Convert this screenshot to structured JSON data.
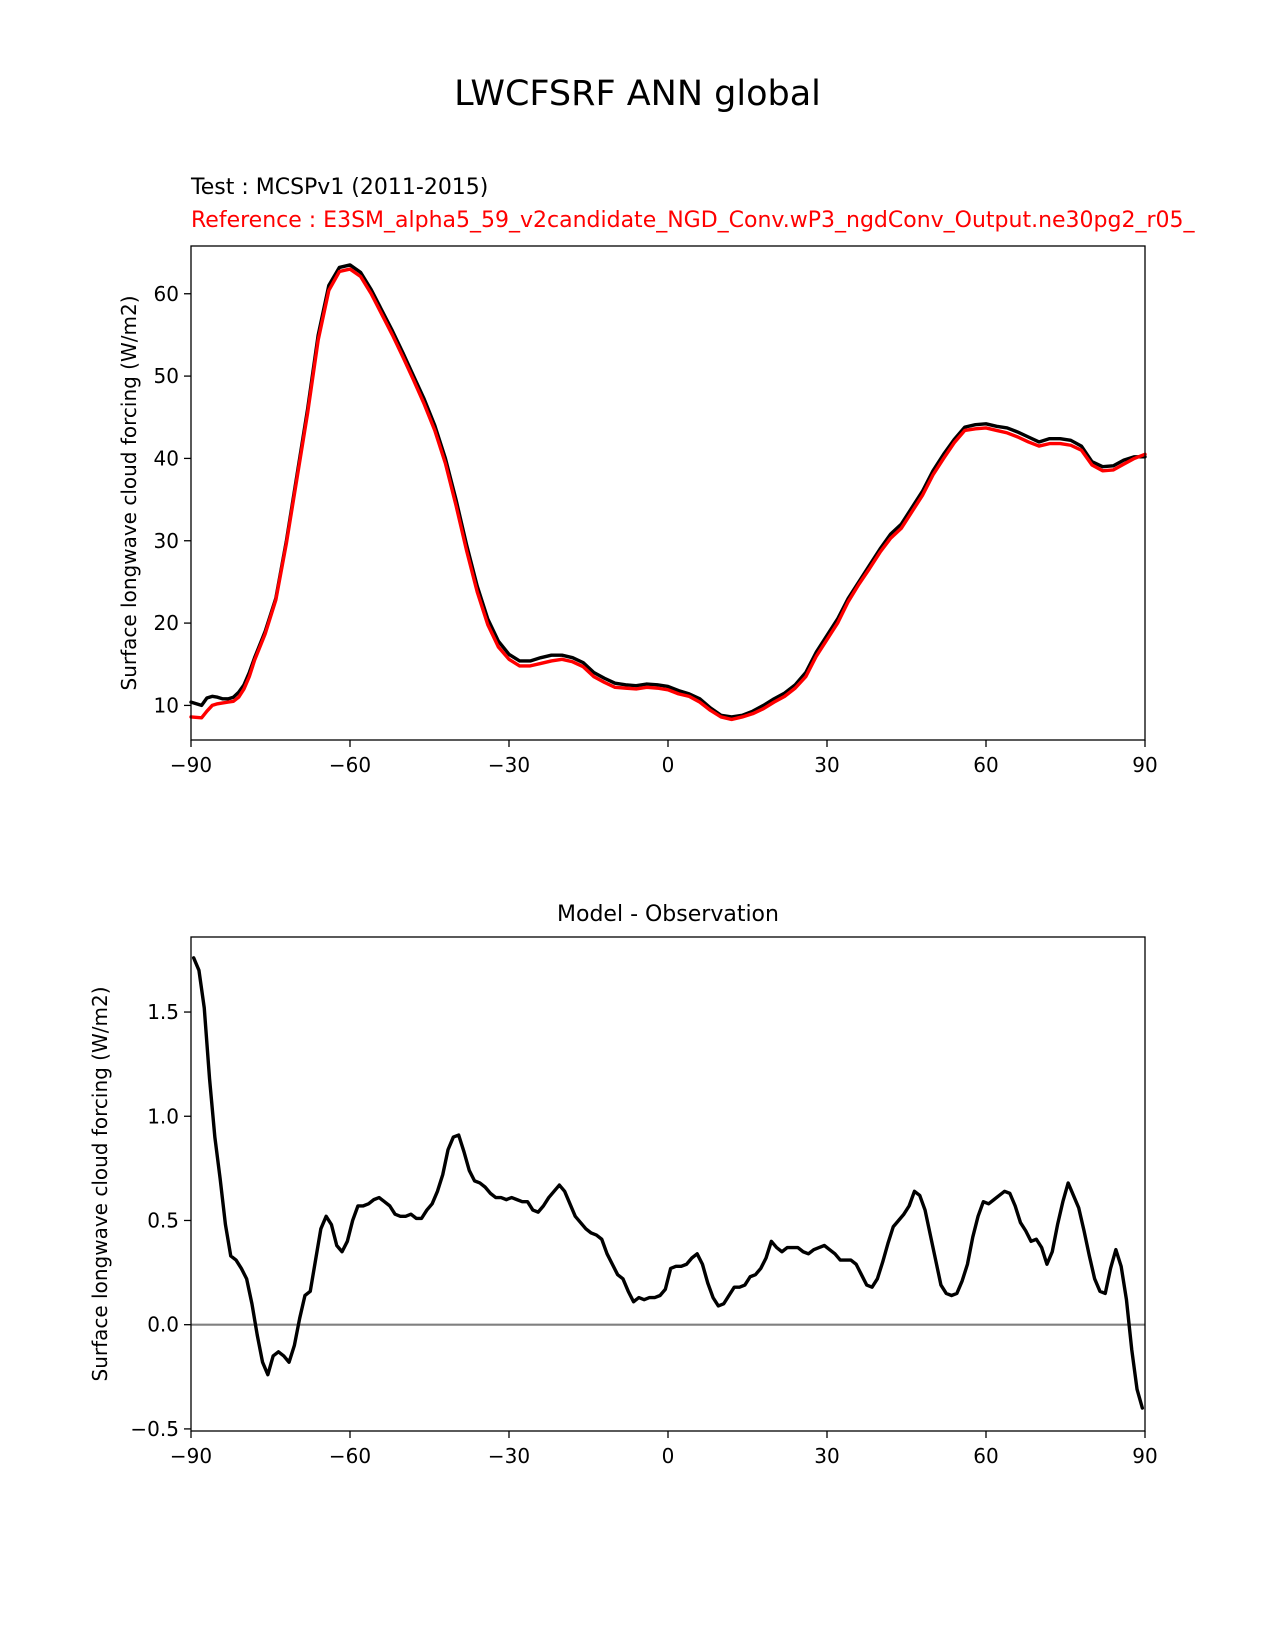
{
  "title": "LWCFSRF ANN global",
  "test_label": "Test : MCSPv1 (2011-2015)",
  "reference_label": "Reference : E3SM_alpha5_59_v2candidate_NGD_Conv.wP3_ngdConv_Output.ne30pg2_r05_",
  "colors": {
    "test": "#000000",
    "reference": "#ff0000",
    "zero_line": "#808080"
  },
  "chart_data": [
    {
      "type": "line",
      "title": "",
      "xlabel": "",
      "ylabel": "Surface longwave cloud forcing (W/m2)",
      "xlim": [
        -90,
        90
      ],
      "ylim": [
        5.8,
        65.8
      ],
      "xticks": [
        -90,
        -60,
        -30,
        0,
        30,
        60,
        90
      ],
      "xtick_labels": [
        "−90",
        "−60",
        "−30",
        "0",
        "30",
        "60",
        "90"
      ],
      "yticks": [
        10,
        20,
        30,
        40,
        50,
        60
      ],
      "ytick_labels": [
        "10",
        "20",
        "30",
        "40",
        "50",
        "60"
      ],
      "x": [
        -90,
        -88,
        -87,
        -86,
        -85,
        -84,
        -83,
        -82,
        -81,
        -80,
        -79,
        -78,
        -76,
        -74,
        -72,
        -70,
        -68,
        -66,
        -64,
        -62,
        -60,
        -58,
        -56,
        -54,
        -52,
        -50,
        -48,
        -46,
        -44,
        -42,
        -40,
        -38,
        -36,
        -34,
        -32,
        -30,
        -28,
        -26,
        -24,
        -22,
        -20,
        -18,
        -16,
        -14,
        -12,
        -10,
        -8,
        -6,
        -4,
        -2,
        0,
        2,
        4,
        6,
        8,
        10,
        12,
        14,
        16,
        18,
        20,
        22,
        24,
        26,
        28,
        30,
        32,
        34,
        36,
        38,
        40,
        42,
        44,
        46,
        48,
        50,
        52,
        54,
        56,
        58,
        60,
        62,
        64,
        66,
        68,
        70,
        72,
        74,
        76,
        78,
        80,
        82,
        84,
        86,
        88,
        90
      ],
      "series": [
        {
          "name": "Test",
          "color": "#000000",
          "values": [
            10.4,
            10.0,
            10.9,
            11.1,
            11.0,
            10.8,
            10.8,
            11.0,
            11.6,
            12.5,
            14.0,
            15.8,
            19.0,
            23.0,
            30.0,
            38.0,
            46.0,
            55.0,
            61.0,
            63.2,
            63.5,
            62.6,
            60.5,
            58.0,
            55.5,
            52.8,
            50.0,
            47.2,
            44.0,
            40.0,
            35.0,
            29.5,
            24.5,
            20.5,
            17.8,
            16.2,
            15.4,
            15.4,
            15.8,
            16.1,
            16.1,
            15.8,
            15.2,
            14.0,
            13.3,
            12.7,
            12.5,
            12.4,
            12.6,
            12.5,
            12.3,
            11.8,
            11.4,
            10.8,
            9.7,
            8.8,
            8.6,
            8.8,
            9.3,
            10.0,
            10.8,
            11.5,
            12.5,
            14.0,
            16.5,
            18.5,
            20.5,
            23.0,
            25.0,
            27.0,
            29.0,
            30.8,
            32.0,
            34.0,
            36.0,
            38.5,
            40.5,
            42.3,
            43.8,
            44.1,
            44.2,
            43.9,
            43.7,
            43.2,
            42.6,
            42.0,
            42.4,
            42.4,
            42.2,
            41.5,
            39.6,
            39.0,
            39.1,
            39.8,
            40.2,
            40.2
          ]
        },
        {
          "name": "Reference",
          "color": "#ff0000",
          "values": [
            8.6,
            8.5,
            9.3,
            10.0,
            10.2,
            10.3,
            10.4,
            10.5,
            11.0,
            12.0,
            13.5,
            15.5,
            18.7,
            22.8,
            29.7,
            37.6,
            45.5,
            54.4,
            60.4,
            62.7,
            63.0,
            62.1,
            60.0,
            57.5,
            55.0,
            52.3,
            49.5,
            46.6,
            43.4,
            39.4,
            34.3,
            28.8,
            23.8,
            19.8,
            17.1,
            15.6,
            14.8,
            14.8,
            15.1,
            15.4,
            15.6,
            15.3,
            14.7,
            13.5,
            12.8,
            12.2,
            12.1,
            12.0,
            12.2,
            12.1,
            11.9,
            11.4,
            11.1,
            10.4,
            9.4,
            8.6,
            8.3,
            8.6,
            9.0,
            9.6,
            10.4,
            11.1,
            12.1,
            13.5,
            16.0,
            18.0,
            20.0,
            22.6,
            24.7,
            26.6,
            28.6,
            30.3,
            31.5,
            33.5,
            35.5,
            38.0,
            40.0,
            41.9,
            43.4,
            43.6,
            43.7,
            43.4,
            43.1,
            42.6,
            42.0,
            41.5,
            41.8,
            41.8,
            41.6,
            41.0,
            39.2,
            38.5,
            38.6,
            39.3,
            40.0,
            40.5
          ]
        }
      ]
    },
    {
      "type": "line",
      "title": "Model - Observation",
      "xlabel": "",
      "ylabel": "Surface longwave cloud forcing (W/m2)",
      "xlim": [
        -90,
        90
      ],
      "ylim": [
        -0.51,
        1.86
      ],
      "xticks": [
        -90,
        -60,
        -30,
        0,
        30,
        60,
        90
      ],
      "xtick_labels": [
        "−90",
        "−60",
        "−30",
        "0",
        "30",
        "60",
        "90"
      ],
      "yticks": [
        -0.5,
        0.0,
        0.5,
        1.0,
        1.5
      ],
      "ytick_labels": [
        "−0.5",
        "0.0",
        "0.5",
        "1.0",
        "1.5"
      ],
      "zero_line": 0,
      "x": [
        -89.5,
        -88.5,
        -87.5,
        -86.5,
        -85.5,
        -84.5,
        -83.5,
        -82.5,
        -81.5,
        -80.5,
        -79.5,
        -78.5,
        -77.5,
        -76.5,
        -75.5,
        -74.5,
        -73.5,
        -72.5,
        -71.5,
        -70.5,
        -69.5,
        -68.5,
        -67.5,
        -66.5,
        -65.5,
        -64.5,
        -63.5,
        -62.5,
        -61.5,
        -60.5,
        -59.5,
        -58.5,
        -57.5,
        -56.5,
        -55.5,
        -54.5,
        -53.5,
        -52.5,
        -51.5,
        -50.5,
        -49.5,
        -48.5,
        -47.5,
        -46.5,
        -45.5,
        -44.5,
        -43.5,
        -42.5,
        -41.5,
        -40.5,
        -39.5,
        -38.5,
        -37.5,
        -36.5,
        -35.5,
        -34.5,
        -33.5,
        -32.5,
        -31.5,
        -30.5,
        -29.5,
        -28.5,
        -27.5,
        -26.5,
        -25.5,
        -24.5,
        -23.5,
        -22.5,
        -21.5,
        -20.5,
        -19.5,
        -18.5,
        -17.5,
        -16.5,
        -15.5,
        -14.5,
        -13.5,
        -12.5,
        -11.5,
        -10.5,
        -9.5,
        -8.5,
        -7.5,
        -6.5,
        -5.5,
        -4.5,
        -3.5,
        -2.5,
        -1.5,
        -0.5,
        0.5,
        1.5,
        2.5,
        3.5,
        4.5,
        5.5,
        6.5,
        7.5,
        8.5,
        9.5,
        10.5,
        11.5,
        12.5,
        13.5,
        14.5,
        15.5,
        16.5,
        17.5,
        18.5,
        19.5,
        20.5,
        21.5,
        22.5,
        23.5,
        24.5,
        25.5,
        26.5,
        27.5,
        28.5,
        29.5,
        30.5,
        31.5,
        32.5,
        33.5,
        34.5,
        35.5,
        36.5,
        37.5,
        38.5,
        39.5,
        40.5,
        41.5,
        42.5,
        43.5,
        44.5,
        45.5,
        46.5,
        47.5,
        48.5,
        49.5,
        50.5,
        51.5,
        52.5,
        53.5,
        54.5,
        55.5,
        56.5,
        57.5,
        58.5,
        59.5,
        60.5,
        61.5,
        62.5,
        63.5,
        64.5,
        65.5,
        66.5,
        67.5,
        68.5,
        69.5,
        70.5,
        71.5,
        72.5,
        73.5,
        74.5,
        75.5,
        76.5,
        77.5,
        78.5,
        79.5,
        80.5,
        81.5,
        82.5,
        83.5,
        84.5,
        85.5,
        86.5,
        87.5,
        88.5,
        89.5
      ],
      "series": [
        {
          "name": "Model - Observation",
          "color": "#000000",
          "values": [
            1.76,
            1.7,
            1.52,
            1.18,
            0.9,
            0.7,
            0.48,
            0.33,
            0.31,
            0.27,
            0.22,
            0.1,
            -0.05,
            -0.18,
            -0.24,
            -0.15,
            -0.13,
            -0.15,
            -0.18,
            -0.1,
            0.03,
            0.14,
            0.16,
            0.31,
            0.46,
            0.52,
            0.48,
            0.38,
            0.35,
            0.4,
            0.5,
            0.57,
            0.57,
            0.58,
            0.6,
            0.61,
            0.59,
            0.57,
            0.53,
            0.52,
            0.52,
            0.53,
            0.51,
            0.51,
            0.55,
            0.58,
            0.64,
            0.72,
            0.84,
            0.9,
            0.91,
            0.83,
            0.74,
            0.69,
            0.68,
            0.66,
            0.63,
            0.61,
            0.61,
            0.6,
            0.61,
            0.6,
            0.59,
            0.59,
            0.55,
            0.54,
            0.57,
            0.61,
            0.64,
            0.67,
            0.64,
            0.58,
            0.52,
            0.49,
            0.46,
            0.44,
            0.43,
            0.41,
            0.34,
            0.29,
            0.24,
            0.22,
            0.16,
            0.11,
            0.13,
            0.12,
            0.13,
            0.13,
            0.14,
            0.17,
            0.27,
            0.28,
            0.28,
            0.29,
            0.32,
            0.34,
            0.29,
            0.2,
            0.13,
            0.09,
            0.1,
            0.14,
            0.18,
            0.18,
            0.19,
            0.23,
            0.24,
            0.27,
            0.32,
            0.4,
            0.37,
            0.35,
            0.37,
            0.37,
            0.37,
            0.35,
            0.34,
            0.36,
            0.37,
            0.38,
            0.36,
            0.34,
            0.31,
            0.31,
            0.31,
            0.29,
            0.24,
            0.19,
            0.18,
            0.22,
            0.3,
            0.39,
            0.47,
            0.5,
            0.53,
            0.57,
            0.64,
            0.62,
            0.55,
            0.43,
            0.31,
            0.19,
            0.15,
            0.14,
            0.15,
            0.21,
            0.29,
            0.42,
            0.52,
            0.59,
            0.58,
            0.6,
            0.62,
            0.64,
            0.63,
            0.57,
            0.49,
            0.45,
            0.4,
            0.41,
            0.37,
            0.29,
            0.35,
            0.48,
            0.59,
            0.68,
            0.62,
            0.56,
            0.45,
            0.33,
            0.22,
            0.16,
            0.15,
            0.27,
            0.36,
            0.28,
            0.12,
            -0.12,
            -0.31,
            -0.4
          ]
        }
      ]
    }
  ]
}
